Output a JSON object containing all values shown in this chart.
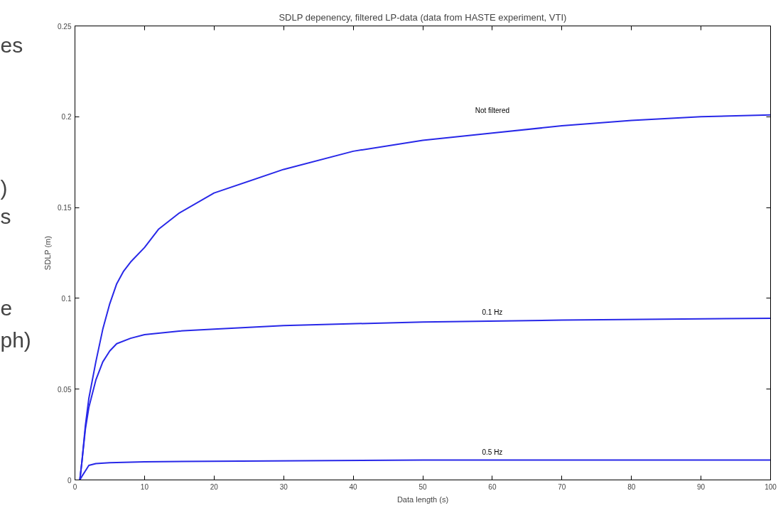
{
  "chart_data": {
    "type": "line",
    "title": "SDLP depenency, filtered LP-data (data from HASTE experiment, VTI)",
    "xlabel": "Data length (s)",
    "ylabel": "SDLP (m)",
    "series": [
      {
        "name": "Not filtered",
        "color": "#2828e8",
        "x": [
          0.7,
          1,
          1.5,
          2,
          3,
          4,
          5,
          6,
          7,
          8,
          10,
          12,
          15,
          20,
          30,
          40,
          50,
          60,
          70,
          80,
          90,
          100
        ],
        "values": [
          0,
          0.01,
          0.03,
          0.045,
          0.065,
          0.083,
          0.097,
          0.108,
          0.115,
          0.12,
          0.128,
          0.138,
          0.147,
          0.158,
          0.171,
          0.181,
          0.187,
          0.191,
          0.195,
          0.198,
          0.2,
          0.201
        ]
      },
      {
        "name": "0.1 Hz",
        "color": "#2828e8",
        "x": [
          0.7,
          1,
          1.5,
          2,
          3,
          4,
          5,
          6,
          8,
          10,
          15,
          20,
          30,
          50,
          70,
          100
        ],
        "values": [
          0,
          0.01,
          0.028,
          0.04,
          0.055,
          0.065,
          0.071,
          0.075,
          0.078,
          0.08,
          0.082,
          0.083,
          0.085,
          0.087,
          0.088,
          0.089
        ]
      },
      {
        "name": "0.5 Hz",
        "color": "#2828e8",
        "x": [
          0.7,
          1,
          1.5,
          2,
          3,
          5,
          10,
          50,
          100
        ],
        "values": [
          0,
          0.002,
          0.005,
          0.008,
          0.009,
          0.0095,
          0.01,
          0.011,
          0.011
        ]
      }
    ],
    "xlim": [
      0,
      100
    ],
    "xticks": [
      0,
      10,
      20,
      30,
      40,
      50,
      60,
      70,
      80,
      90,
      100
    ],
    "ylim": [
      0,
      0.25
    ],
    "yticks": [
      0,
      0.05,
      0.1,
      0.15,
      0.2,
      0.25
    ],
    "grid": false,
    "legend": false,
    "marker": "none",
    "line_style": "solid",
    "annotations": [
      "es",
      ")",
      "s",
      "e",
      "ph)"
    ]
  }
}
